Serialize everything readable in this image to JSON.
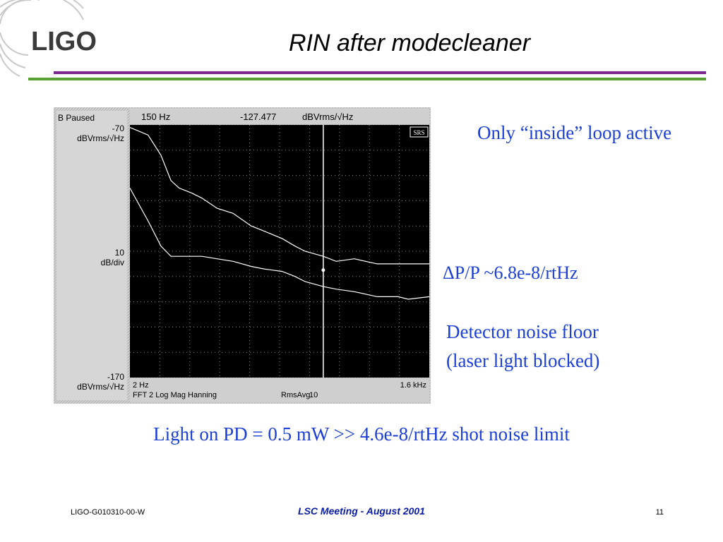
{
  "header": {
    "logo_text": "LIGO",
    "title": "RIN after modecleaner",
    "colors": {
      "purple_rule": "#7a2a8c",
      "green_rule": "#58a032"
    }
  },
  "analyzer": {
    "status": "B Paused",
    "marker_freq": "150 Hz",
    "marker_value": "-127.477",
    "marker_unit": "dBVrms/√Hz",
    "top_ref_value": "-70",
    "top_ref_unit": "dBVrms/√Hz",
    "scale_value": "10",
    "scale_unit": "dB/div",
    "bottom_ref_value": "-170",
    "bottom_ref_unit": "dBVrms/√Hz",
    "start_freq": "2 Hz",
    "end_freq": "1.6 kHz",
    "measurement": "FFT 2 Log Mag Hanning",
    "average_label": "RmsAvg",
    "average_count": "10",
    "brand_badge": "SRS",
    "colors": {
      "panel": "#c8c8c8",
      "screen": "#000000",
      "trace": "#ffffff"
    }
  },
  "chart_data": {
    "type": "line",
    "title": "",
    "xlabel": "",
    "ylabel": "dBVrms/√Hz",
    "x_scale": "log",
    "xlim": [
      2,
      1600
    ],
    "ylim": [
      -170,
      -70
    ],
    "grid": true,
    "marker": {
      "x": 150,
      "y": -127.477
    },
    "series": [
      {
        "x": [
          2,
          3,
          4,
          5,
          6,
          8,
          10,
          14,
          20,
          30,
          40,
          60,
          80,
          100,
          150,
          200,
          300,
          500,
          800,
          1000,
          1600
        ],
        "values": [
          -71,
          -74,
          -82,
          -92,
          -95,
          -97,
          -99,
          -103,
          -105,
          -110,
          -112,
          -115,
          -118,
          -120,
          -122,
          -124,
          -123,
          -125,
          -125,
          -125,
          -125
        ]
      },
      {
        "x": [
          2,
          3,
          4,
          5,
          6,
          8,
          10,
          14,
          20,
          30,
          40,
          60,
          80,
          100,
          150,
          200,
          300,
          500,
          800,
          1000,
          1600
        ],
        "values": [
          -95,
          -108,
          -118,
          -122,
          -122,
          -122,
          -122,
          -123,
          -124,
          -126,
          -127,
          -128,
          -130,
          -132,
          -134,
          -135,
          -136,
          -138,
          -138,
          -139,
          -138
        ]
      }
    ]
  },
  "notes": {
    "inside_loop": "Only “inside” loop active",
    "dpp": "ΔP/P ~6.8e-8/rtHz",
    "detector_line1": "Detector noise floor",
    "detector_line2": "(laser light blocked)",
    "light_on_pd": "Light on PD = 0.5 mW >> 4.6e-8/rtHz shot noise limit"
  },
  "footer": {
    "doc_id": "LIGO-G010310-00-W",
    "meeting": "LSC Meeting - August 2001",
    "page": "11"
  }
}
